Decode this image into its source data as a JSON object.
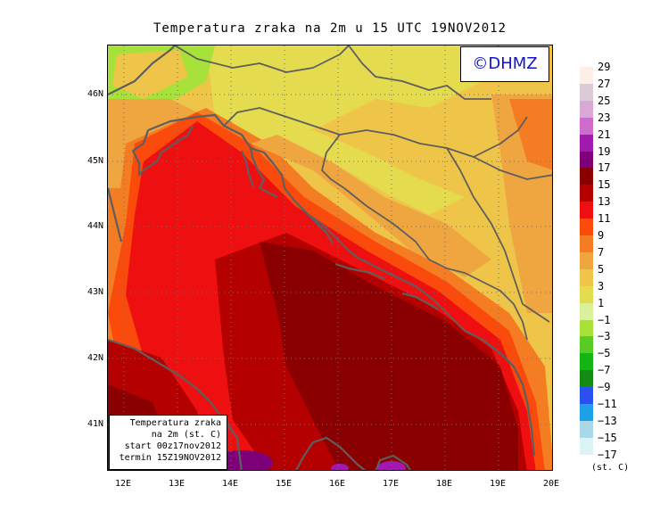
{
  "title": "Temperatura zraka na 2m u 15 UTC 19NOV2012",
  "copyright": "©DHMZ",
  "info_box": {
    "line1": "Temperatura zraka",
    "line2": "na 2m (st. C)",
    "line3": "start 00z17nov2012",
    "line4": "termin 15Z19NOV2012"
  },
  "lat_labels": [
    "46N",
    "45N",
    "44N",
    "43N",
    "42N",
    "41N"
  ],
  "lon_labels": [
    "12E",
    "13E",
    "14E",
    "15E",
    "16E",
    "17E",
    "18E",
    "19E",
    "20E"
  ],
  "legend": {
    "levels": [
      "29",
      "27",
      "25",
      "23",
      "21",
      "19",
      "17",
      "15",
      "13",
      "11",
      "9",
      "7",
      "5",
      "3",
      "1",
      "−1",
      "−3",
      "−5",
      "−7",
      "−9",
      "−11",
      "−13",
      "−15",
      "−17"
    ],
    "colors": [
      "#fdeee6",
      "#dccbd7",
      "#d9a9d6",
      "#cc6ccc",
      "#a11ab0",
      "#7d0078",
      "#8a0000",
      "#b50000",
      "#ee1010",
      "#fa4a0c",
      "#f47c22",
      "#f0a640",
      "#eec548",
      "#e4dc4e",
      "#dcef9a",
      "#a6e23a",
      "#58cc24",
      "#14b414",
      "#148c14",
      "#2a50f0",
      "#1ea0e8",
      "#aad8e8",
      "#dcf4f8",
      "#ffffff"
    ],
    "units": "(st. C)"
  },
  "colors": {
    "sea_warmest": "#8a0000",
    "coastline": "#5e5e5e"
  }
}
